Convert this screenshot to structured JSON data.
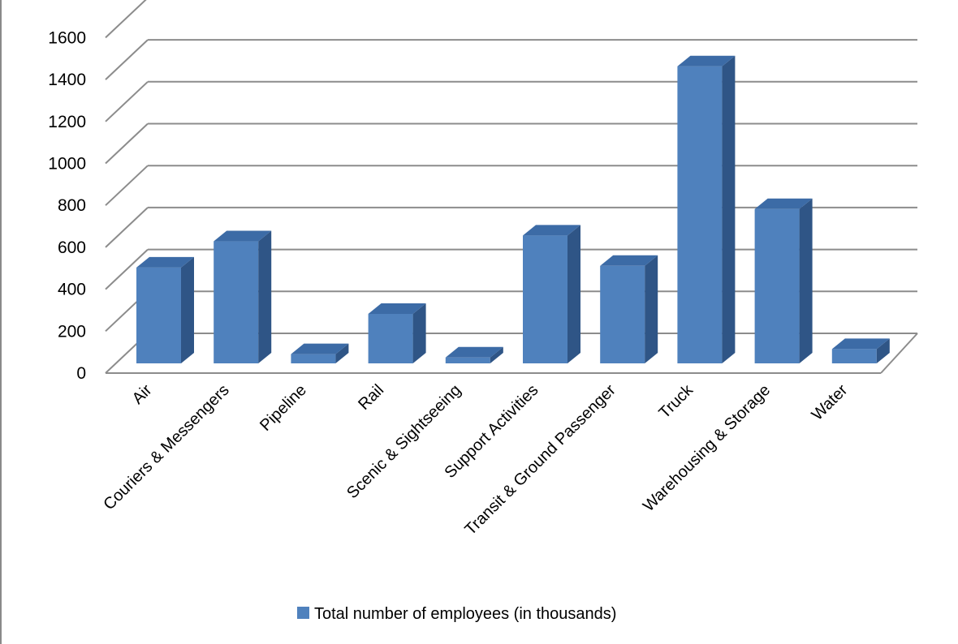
{
  "chart_data": {
    "type": "bar",
    "categories": [
      "Air",
      "Couriers & Messengers",
      "Pipeline",
      "Rail",
      "Scenic & Sightseeing",
      "Support Activities",
      "Transit & Ground Passenger",
      "Truck",
      "Warehousing & Storage",
      "Water"
    ],
    "series": [
      {
        "name": "Total number of employees (in thousands)",
        "values": [
          457,
          582,
          44,
          236,
          28,
          610,
          465,
          1417,
          736,
          68
        ]
      }
    ],
    "y_ticks": [
      "0",
      "200",
      "400",
      "600",
      "800",
      "1000",
      "1200",
      "1400",
      "1600"
    ],
    "ylim": [
      0,
      1600
    ],
    "grid": true,
    "legend": "bottom",
    "colors": {
      "front": "#4F81BD",
      "top": "#3C6BA6",
      "side": "#2F5586",
      "grid": "#8C8C8C"
    }
  }
}
